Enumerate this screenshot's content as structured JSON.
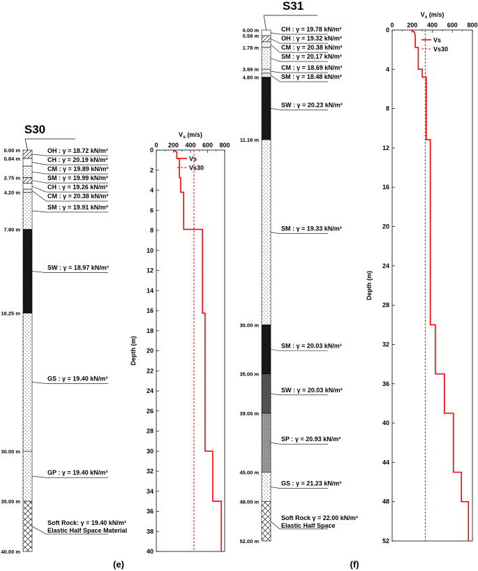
{
  "panels": {
    "e": {
      "label": "(e)"
    },
    "f": {
      "label": "(f)"
    }
  },
  "logs": [
    {
      "id": "S30",
      "title": "S30",
      "depth_labels": [
        "0.00 m",
        "0.84 m",
        "2.75 m",
        "4.20 m",
        "7.90 m",
        "16.25 m",
        "30.00 m",
        "35.00 m",
        "40.00 m"
      ],
      "layers": [
        {
          "label": "OH : γ = 18.72 kN/m³",
          "from": 0,
          "to": 0.84,
          "pattern": "hatch"
        },
        {
          "label": "CH : γ = 20.19 kN/m³",
          "from": 0.84,
          "to": 1.6,
          "pattern": "white"
        },
        {
          "label": "CM : γ = 19.89 kN/m³",
          "from": 1.6,
          "to": 2.75,
          "pattern": "dots"
        },
        {
          "label": "SM : γ = 19.99 kN/m³",
          "from": 2.75,
          "to": 3.3,
          "pattern": "hatch"
        },
        {
          "label": "CH : γ = 19.26 kN/m³",
          "from": 3.3,
          "to": 3.9,
          "pattern": "white"
        },
        {
          "label": "CM : γ = 20.38 kN/m³",
          "from": 3.9,
          "to": 4.2,
          "pattern": "dots"
        },
        {
          "label": "SM : γ = 19.91 kN/m³",
          "from": 4.2,
          "to": 7.9,
          "pattern": "dots"
        },
        {
          "label": "SW : γ = 18.97 kN/m³",
          "from": 7.9,
          "to": 16.25,
          "pattern": "black"
        },
        {
          "label": "GS : γ = 19.40 kN/m³",
          "from": 16.25,
          "to": 30,
          "pattern": "dots"
        },
        {
          "label": "GP : γ = 19.40 kN/m³",
          "from": 30,
          "to": 35,
          "pattern": "dots"
        },
        {
          "label": "Soft Rock: γ = 19.40 kN/m³",
          "label2": "Elastic Half Space Material",
          "from": 35,
          "to": 40,
          "pattern": "rock"
        }
      ]
    },
    {
      "id": "S31",
      "title": "S31",
      "depth_labels": [
        "0.00 m",
        "0.58 m",
        "1.78 m",
        "3.99 m",
        "4.80 m",
        "11.16 m",
        "30.00 m",
        "35.00 m",
        "39.00 m",
        "45.00 m",
        "48.00 m",
        "52.00 m"
      ],
      "layers": [
        {
          "label": "CH : γ = 19.78 kN/m³",
          "from": 0,
          "to": 0.58,
          "pattern": "white"
        },
        {
          "label": "OH : γ = 19.32 kN/m³",
          "from": 0.58,
          "to": 1.2,
          "pattern": "hatch"
        },
        {
          "label": "CM : γ = 20.38 kN/m³",
          "from": 1.2,
          "to": 1.78,
          "pattern": "dots"
        },
        {
          "label": "SM : γ = 20.17 kN/m³",
          "from": 1.78,
          "to": 3.99,
          "pattern": "dots"
        },
        {
          "label": "CM : γ = 18.69 kN/m³",
          "from": 3.99,
          "to": 4.4,
          "pattern": "dots"
        },
        {
          "label": "SM : γ = 18.48 kN/m³",
          "from": 4.4,
          "to": 4.8,
          "pattern": "dots"
        },
        {
          "label": "SW : γ = 20.23 kN/m³",
          "from": 4.8,
          "to": 11.16,
          "pattern": "black"
        },
        {
          "label": "SM : γ = 19.33 kN/m³",
          "from": 11.16,
          "to": 30,
          "pattern": "dots"
        },
        {
          "label": "SM : γ = 20.03 kN/m³",
          "from": 30,
          "to": 35,
          "pattern": "black"
        },
        {
          "label": "SW : γ = 20.03 kN/m³",
          "from": 35,
          "to": 39,
          "pattern": "darkgray"
        },
        {
          "label": "SP : γ = 20.93 kN/m³",
          "from": 39,
          "to": 45,
          "pattern": "gray"
        },
        {
          "label": "GS : γ = 21.23 kN/m³",
          "from": 45,
          "to": 48,
          "pattern": "dots"
        },
        {
          "label": "Soft Rock γ = 22.00 kN/m³",
          "label2": "Elastic Half Space",
          "from": 48,
          "to": 52,
          "pattern": "rock"
        }
      ]
    }
  ],
  "chart_data": [
    {
      "id": "e",
      "type": "line",
      "title": "",
      "xlabel": "Vs (m/s)",
      "ylabel": "Depth (m)",
      "xlim": [
        0,
        800
      ],
      "ylim": [
        40,
        0
      ],
      "x_ticks": [
        0,
        200,
        400,
        600,
        800
      ],
      "y_ticks": [
        0,
        2,
        4,
        6,
        8,
        10,
        12,
        14,
        16,
        18,
        20,
        22,
        24,
        26,
        28,
        30,
        32,
        34,
        36,
        38,
        40
      ],
      "legend": "top-right",
      "series": [
        {
          "name": "Vs",
          "style": "solid",
          "color": "#ff0000",
          "points": [
            [
              200,
              0
            ],
            [
              240,
              0.2
            ],
            [
              240,
              0.84
            ],
            [
              270,
              0.84
            ],
            [
              270,
              2.75
            ],
            [
              285,
              2.75
            ],
            [
              285,
              4.2
            ],
            [
              320,
              4.2
            ],
            [
              320,
              7.9
            ],
            [
              540,
              7.9
            ],
            [
              540,
              16.25
            ],
            [
              570,
              16.25
            ],
            [
              570,
              30
            ],
            [
              660,
              30
            ],
            [
              660,
              35
            ],
            [
              760,
              35
            ],
            [
              760,
              40
            ]
          ]
        },
        {
          "name": "Vs30",
          "style": "dashed",
          "color": "#ff0000",
          "points": [
            [
              440,
              0
            ],
            [
              440,
              40
            ]
          ]
        }
      ]
    },
    {
      "id": "f",
      "type": "line",
      "title": "",
      "xlabel": "Vs (m/s)",
      "ylabel": "Depth (m)",
      "xlim": [
        0,
        800
      ],
      "ylim": [
        52,
        0
      ],
      "x_ticks": [
        0,
        200,
        400,
        600,
        800
      ],
      "y_ticks": [
        0,
        4,
        8,
        12,
        16,
        20,
        24,
        28,
        32,
        36,
        40,
        44,
        48,
        52
      ],
      "legend": "top-right",
      "series": [
        {
          "name": "Vs",
          "style": "solid",
          "color": "#ff0000",
          "points": [
            [
              190,
              0
            ],
            [
              220,
              0.2
            ],
            [
              230,
              0.58
            ],
            [
              230,
              1.78
            ],
            [
              260,
              1.78
            ],
            [
              260,
              3.99
            ],
            [
              300,
              3.99
            ],
            [
              300,
              4.8
            ],
            [
              340,
              4.8
            ],
            [
              340,
              11.16
            ],
            [
              380,
              11.16
            ],
            [
              380,
              30
            ],
            [
              430,
              30
            ],
            [
              430,
              35
            ],
            [
              520,
              35
            ],
            [
              520,
              39
            ],
            [
              610,
              39
            ],
            [
              610,
              45
            ],
            [
              690,
              45
            ],
            [
              690,
              48
            ],
            [
              760,
              48
            ],
            [
              760,
              52
            ]
          ]
        },
        {
          "name": "Vs30",
          "style": "dashed",
          "color": "#ff0000",
          "points": [
            [
              330,
              0
            ],
            [
              330,
              52
            ]
          ]
        }
      ]
    }
  ]
}
